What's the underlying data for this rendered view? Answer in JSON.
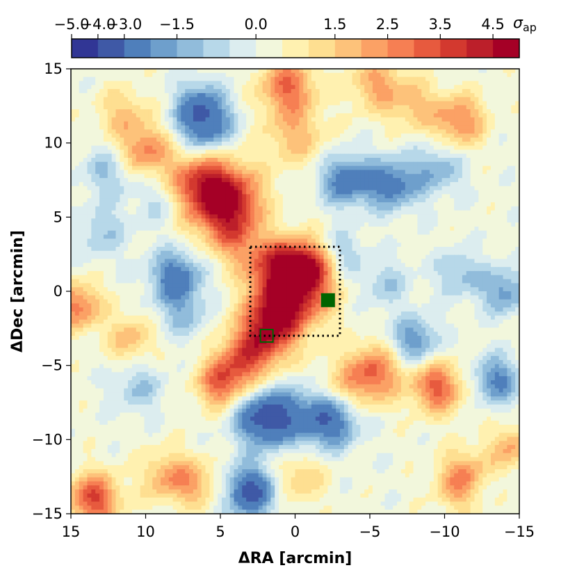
{
  "chart_data": {
    "type": "heatmap",
    "subtype": "filled-contour",
    "xlabel": "ΔRA [arcmin]",
    "ylabel": "ΔDec [arcmin]",
    "xlim": [
      15,
      -15
    ],
    "ylim": [
      -15,
      15
    ],
    "xticks": [
      {
        "value": 15,
        "label": "15"
      },
      {
        "value": 10,
        "label": "10"
      },
      {
        "value": 5,
        "label": "5"
      },
      {
        "value": 0,
        "label": "0"
      },
      {
        "value": -5,
        "label": "−5"
      },
      {
        "value": -10,
        "label": "−10"
      },
      {
        "value": -15,
        "label": "−15"
      }
    ],
    "yticks": [
      {
        "value": 15,
        "label": "15"
      },
      {
        "value": 10,
        "label": "10"
      },
      {
        "value": 5,
        "label": "5"
      },
      {
        "value": 0,
        "label": "0"
      },
      {
        "value": -5,
        "label": "−5"
      },
      {
        "value": -10,
        "label": "−10"
      },
      {
        "value": -15,
        "label": "−15"
      }
    ],
    "colorbar": {
      "label_symbol": "σ",
      "label_subscript": "ap",
      "boundaries": [
        -5.0,
        -4.0,
        -3.0,
        -2.0,
        -1.5,
        -1.0,
        -0.5,
        0.0,
        0.5,
        1.0,
        1.5,
        2.0,
        2.5,
        3.0,
        3.5,
        4.0,
        4.5,
        5.0
      ],
      "tick_labels": [
        {
          "value": -5.0,
          "label": "−5.0"
        },
        {
          "value": -4.0,
          "label": "−4.0"
        },
        {
          "value": -3.0,
          "label": "−3.0"
        },
        {
          "value": -1.5,
          "label": "−1.5"
        },
        {
          "value": 0.0,
          "label": "0.0"
        },
        {
          "value": 1.5,
          "label": "1.5"
        },
        {
          "value": 2.5,
          "label": "2.5"
        },
        {
          "value": 3.5,
          "label": "3.5"
        },
        {
          "value": 4.5,
          "label": "4.5"
        }
      ],
      "colors": [
        "#313695",
        "#3f59a6",
        "#4f7fbb",
        "#6e9fcc",
        "#91bcdb",
        "#b7d8e9",
        "#dcedef",
        "#f2f7dc",
        "#fff1b0",
        "#fedf91",
        "#fdc27a",
        "#fba165",
        "#f67f53",
        "#e75a3e",
        "#d3392f",
        "#bc1f2a",
        "#a50026"
      ]
    },
    "field_features": [
      {
        "ra": 0.0,
        "dec": 0.0,
        "amp": 3.8,
        "sigma": 1.7
      },
      {
        "ra": -0.8,
        "dec": 1.8,
        "amp": 3.2,
        "sigma": 1.2
      },
      {
        "ra": 1.6,
        "dec": 1.8,
        "amp": 2.4,
        "sigma": 1.3
      },
      {
        "ra": 2.0,
        "dec": -3.0,
        "amp": 3.3,
        "sigma": 1.4
      },
      {
        "ra": 3.6,
        "dec": -4.8,
        "amp": 2.3,
        "sigma": 1.3
      },
      {
        "ra": 5.0,
        "dec": -6.3,
        "amp": 2.6,
        "sigma": 1.1
      },
      {
        "ra": 1.2,
        "dec": -1.2,
        "amp": 1.8,
        "sigma": 1.2
      },
      {
        "ra": 5.2,
        "dec": 6.5,
        "amp": 3.5,
        "sigma": 1.8
      },
      {
        "ra": 4.3,
        "dec": 5.8,
        "amp": 1.8,
        "sigma": 1.4
      },
      {
        "ra": 6.8,
        "dec": 7.5,
        "amp": 1.6,
        "sigma": 1.3
      },
      {
        "ra": 4.0,
        "dec": 3.5,
        "amp": 1.6,
        "sigma": 1.2
      },
      {
        "ra": 0.5,
        "dec": 13.8,
        "amp": 2.8,
        "sigma": 1.3
      },
      {
        "ra": 0.0,
        "dec": 10.5,
        "amp": 1.6,
        "sigma": 1.4
      },
      {
        "ra": -5.5,
        "dec": 14.0,
        "amp": 1.9,
        "sigma": 1.3
      },
      {
        "ra": -11.0,
        "dec": 11.5,
        "amp": 2.4,
        "sigma": 1.2
      },
      {
        "ra": -8.0,
        "dec": 12.5,
        "amp": 1.4,
        "sigma": 1.2
      },
      {
        "ra": 10.0,
        "dec": 9.5,
        "amp": 2.4,
        "sigma": 1.2
      },
      {
        "ra": 11.5,
        "dec": 12.0,
        "amp": 1.4,
        "sigma": 1.2
      },
      {
        "ra": 14.5,
        "dec": -1.0,
        "amp": 2.6,
        "sigma": 1.1
      },
      {
        "ra": 11.0,
        "dec": -3.2,
        "amp": 1.6,
        "sigma": 1.1
      },
      {
        "ra": -5.2,
        "dec": -5.5,
        "amp": 2.8,
        "sigma": 1.3
      },
      {
        "ra": -9.5,
        "dec": -6.5,
        "amp": 3.0,
        "sigma": 1.2
      },
      {
        "ra": -3.0,
        "dec": -7.0,
        "amp": 1.4,
        "sigma": 1.4
      },
      {
        "ra": -11.5,
        "dec": -12.8,
        "amp": 3.0,
        "sigma": 1.3
      },
      {
        "ra": -14.5,
        "dec": -10.5,
        "amp": 1.8,
        "sigma": 1.0
      },
      {
        "ra": 13.5,
        "dec": -14.0,
        "amp": 3.4,
        "sigma": 1.2
      },
      {
        "ra": 8.5,
        "dec": -12.5,
        "amp": 1.9,
        "sigma": 1.2
      },
      {
        "ra": 6.5,
        "dec": -13.0,
        "amp": 1.5,
        "sigma": 1.1
      },
      {
        "ra": -0.3,
        "dec": -12.5,
        "amp": 1.4,
        "sigma": 1.2
      },
      {
        "ra": 2.2,
        "dec": -8.6,
        "amp": -3.3,
        "sigma": 1.3
      },
      {
        "ra": -2.5,
        "dec": -8.6,
        "amp": -3.2,
        "sigma": 1.3
      },
      {
        "ra": 0.0,
        "dec": -8.4,
        "amp": -1.8,
        "sigma": 1.5
      },
      {
        "ra": 3.0,
        "dec": -13.5,
        "amp": -3.6,
        "sigma": 1.2
      },
      {
        "ra": 6.0,
        "dec": 11.2,
        "amp": -3.0,
        "sigma": 1.3
      },
      {
        "ra": 6.5,
        "dec": 12.8,
        "amp": -1.6,
        "sigma": 1.1
      },
      {
        "ra": -3.5,
        "dec": 7.5,
        "amp": -2.8,
        "sigma": 1.2
      },
      {
        "ra": -6.5,
        "dec": 7.2,
        "amp": -2.6,
        "sigma": 1.2
      },
      {
        "ra": 8.0,
        "dec": 1.0,
        "amp": -2.8,
        "sigma": 1.2
      },
      {
        "ra": 7.5,
        "dec": -1.5,
        "amp": -1.3,
        "sigma": 1.2
      },
      {
        "ra": -8.0,
        "dec": -3.3,
        "amp": -2.2,
        "sigma": 1.1
      },
      {
        "ra": -13.5,
        "dec": -6.0,
        "amp": -2.4,
        "sigma": 1.1
      },
      {
        "ra": -14.0,
        "dec": 0.0,
        "amp": -2.0,
        "sigma": 1.1
      },
      {
        "ra": -11.0,
        "dec": 1.2,
        "amp": -1.4,
        "sigma": 1.1
      },
      {
        "ra": -9.5,
        "dec": 8.2,
        "amp": -1.6,
        "sigma": 1.2
      },
      {
        "ra": 12.5,
        "dec": 8.0,
        "amp": -1.3,
        "sigma": 1.2
      },
      {
        "ra": -12.5,
        "dec": -13.2,
        "amp": -1.3,
        "sigma": 1.0
      },
      {
        "ra": -3.0,
        "dec": 2.5,
        "amp": -1.4,
        "sigma": 1.1
      },
      {
        "ra": 10.5,
        "dec": -6.5,
        "amp": -1.2,
        "sigma": 1.2
      },
      {
        "ra": -6.0,
        "dec": 0.5,
        "amp": -1.1,
        "sigma": 1.2
      },
      {
        "ra": 13.0,
        "dec": 4.0,
        "amp": -1.2,
        "sigma": 1.2
      },
      {
        "ra": 9.0,
        "dec": 6.0,
        "amp": -1.0,
        "sigma": 1.2
      }
    ],
    "background_level": 0.2,
    "overlays": [
      {
        "name": "dotted-box",
        "style": "dotted",
        "color": "#000000",
        "ra_range": [
          3.0,
          -3.0
        ],
        "dec_range": [
          -3.0,
          3.0
        ]
      },
      {
        "name": "filled-square-marker",
        "style": "filled",
        "color": "#006400",
        "ra": -2.2,
        "dec": -0.6
      },
      {
        "name": "open-square-marker",
        "style": "open",
        "color": "#006400",
        "ra": 1.9,
        "dec": -3.0
      }
    ]
  }
}
